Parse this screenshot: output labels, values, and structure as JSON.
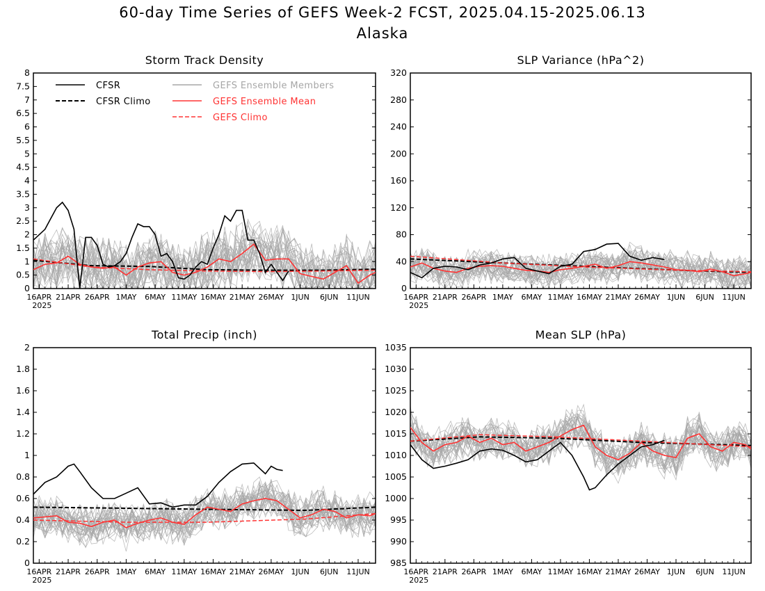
{
  "title_line1": "60-day Time Series of GEFS Week-2 FCST, 2025.04.15-2025.06.13",
  "title_line2": "Alaska",
  "colors": {
    "cfsr": "#000000",
    "members": "#a6a6a6",
    "mean": "#ff3333",
    "gefs_climo": "#ff3333",
    "cfsr_climo": "#000000"
  },
  "legend": {
    "cfsr": "CFSR",
    "cfsr_climo": "CFSR Climo",
    "members": "GEFS Ensemble Members",
    "mean": "GEFS Ensemble Mean",
    "gefs_climo": "GEFS Climo"
  },
  "x_axis": {
    "tick_labels": [
      "16APR",
      "21APR",
      "26APR",
      "1MAY",
      "6MAY",
      "11MAY",
      "16MAY",
      "21MAY",
      "26MAY",
      "1JUN",
      "6JUN",
      "11JUN"
    ],
    "year_label": "2025"
  },
  "chart_data": [
    {
      "type": "line",
      "title": "Storm Track Density",
      "ylim": [
        0,
        8
      ],
      "yticks": [
        "0",
        "0.5",
        "1",
        "1.5",
        "2",
        "2.5",
        "3",
        "3.5",
        "4",
        "4.5",
        "5",
        "5.5",
        "6",
        "6.5",
        "7",
        "7.5",
        "8"
      ],
      "x_start": "2025-04-15",
      "x_end": "2025-06-13",
      "series": [
        {
          "name": "CFSR",
          "dates": [
            "2025-04-15",
            "2025-04-17",
            "2025-04-18",
            "2025-04-19",
            "2025-04-20",
            "2025-04-21",
            "2025-04-22",
            "2025-04-23",
            "2025-04-24",
            "2025-04-25",
            "2025-04-26",
            "2025-04-27",
            "2025-04-28",
            "2025-04-29",
            "2025-04-30",
            "2025-05-01",
            "2025-05-02",
            "2025-05-03",
            "2025-05-04",
            "2025-05-05",
            "2025-05-06",
            "2025-05-07",
            "2025-05-08",
            "2025-05-09",
            "2025-05-10",
            "2025-05-11",
            "2025-05-12",
            "2025-05-13",
            "2025-05-14",
            "2025-05-15",
            "2025-05-16",
            "2025-05-17",
            "2025-05-18",
            "2025-05-19",
            "2025-05-20",
            "2025-05-21",
            "2025-05-22",
            "2025-05-23",
            "2025-05-24",
            "2025-05-25",
            "2025-05-26",
            "2025-05-27",
            "2025-05-28",
            "2025-05-29"
          ],
          "values": [
            1.8,
            2.2,
            2.6,
            3.0,
            3.2,
            2.9,
            2.2,
            0.0,
            1.9,
            1.9,
            1.6,
            0.9,
            0.8,
            0.85,
            1.0,
            1.3,
            1.9,
            2.4,
            2.3,
            2.3,
            2.0,
            1.2,
            1.3,
            1.0,
            0.4,
            0.35,
            0.5,
            0.8,
            1.0,
            0.9,
            1.5,
            2.0,
            2.7,
            2.5,
            2.9,
            2.9,
            1.8,
            1.8,
            1.3,
            0.6,
            0.9,
            0.6,
            0.3,
            0.65
          ]
        },
        {
          "name": "CFSR Climo",
          "dates": [
            "2025-04-15",
            "2025-04-25",
            "2025-05-05",
            "2025-05-15",
            "2025-05-25",
            "2025-06-04",
            "2025-06-13"
          ],
          "values": [
            1.05,
            0.85,
            0.82,
            0.7,
            0.68,
            0.68,
            0.72
          ]
        },
        {
          "name": "GEFS Ensemble Mean",
          "dates": [
            "2025-04-15",
            "2025-04-17",
            "2025-04-19",
            "2025-04-21",
            "2025-04-23",
            "2025-04-25",
            "2025-04-27",
            "2025-04-29",
            "2025-05-01",
            "2025-05-03",
            "2025-05-05",
            "2025-05-07",
            "2025-05-09",
            "2025-05-11",
            "2025-05-13",
            "2025-05-15",
            "2025-05-17",
            "2025-05-19",
            "2025-05-21",
            "2025-05-23",
            "2025-05-25",
            "2025-05-27",
            "2025-05-29",
            "2025-05-31",
            "2025-06-02",
            "2025-06-04",
            "2025-06-06",
            "2025-06-08",
            "2025-06-10",
            "2025-06-12",
            "2025-06-13"
          ],
          "values": [
            0.7,
            0.9,
            0.95,
            1.2,
            0.9,
            0.8,
            0.75,
            0.8,
            0.5,
            0.8,
            0.95,
            1.0,
            0.6,
            0.5,
            0.6,
            0.8,
            1.1,
            1.0,
            1.3,
            1.65,
            1.05,
            1.1,
            1.1,
            0.55,
            0.45,
            0.35,
            0.6,
            0.85,
            0.2,
            0.5,
            0.6
          ]
        },
        {
          "name": "GEFS Climo",
          "dates": [
            "2025-04-15",
            "2025-04-25",
            "2025-05-05",
            "2025-05-15",
            "2025-05-25",
            "2025-06-04",
            "2025-06-13"
          ],
          "values": [
            1.1,
            0.8,
            0.7,
            0.65,
            0.63,
            0.65,
            0.68
          ]
        }
      ]
    },
    {
      "type": "line",
      "title": "SLP Variance (hPa^2)",
      "ylim": [
        0,
        320
      ],
      "yticks": [
        "0",
        "40",
        "80",
        "120",
        "160",
        "200",
        "240",
        "280",
        "320"
      ],
      "x_start": "2025-04-15",
      "x_end": "2025-06-13",
      "series": [
        {
          "name": "CFSR",
          "dates": [
            "2025-04-15",
            "2025-04-17",
            "2025-04-19",
            "2025-04-21",
            "2025-04-23",
            "2025-04-25",
            "2025-04-27",
            "2025-04-29",
            "2025-05-01",
            "2025-05-03",
            "2025-05-05",
            "2025-05-07",
            "2025-05-09",
            "2025-05-11",
            "2025-05-13",
            "2025-05-15",
            "2025-05-17",
            "2025-05-19",
            "2025-05-21",
            "2025-05-23",
            "2025-05-25",
            "2025-05-27",
            "2025-05-29"
          ],
          "values": [
            24,
            16,
            30,
            33,
            32,
            28,
            35,
            38,
            44,
            46,
            30,
            26,
            22,
            33,
            36,
            55,
            58,
            66,
            67,
            48,
            42,
            46,
            43
          ]
        },
        {
          "name": "CFSR Climo",
          "dates": [
            "2025-04-15",
            "2025-05-01",
            "2025-05-15",
            "2025-06-01",
            "2025-06-13"
          ],
          "values": [
            44,
            38,
            33,
            27,
            24
          ]
        },
        {
          "name": "GEFS Ensemble Mean",
          "dates": [
            "2025-04-15",
            "2025-04-17",
            "2025-04-19",
            "2025-04-21",
            "2025-04-23",
            "2025-04-25",
            "2025-04-27",
            "2025-04-29",
            "2025-05-01",
            "2025-05-03",
            "2025-05-05",
            "2025-05-07",
            "2025-05-09",
            "2025-05-11",
            "2025-05-13",
            "2025-05-15",
            "2025-05-17",
            "2025-05-19",
            "2025-05-21",
            "2025-05-23",
            "2025-05-25",
            "2025-05-27",
            "2025-05-29",
            "2025-05-31",
            "2025-06-02",
            "2025-06-04",
            "2025-06-06",
            "2025-06-08",
            "2025-06-10",
            "2025-06-12",
            "2025-06-13"
          ],
          "values": [
            32,
            38,
            30,
            26,
            24,
            30,
            33,
            34,
            33,
            30,
            27,
            26,
            24,
            28,
            30,
            33,
            36,
            30,
            34,
            40,
            38,
            35,
            32,
            28,
            27,
            25,
            29,
            25,
            19,
            22,
            24
          ]
        },
        {
          "name": "GEFS Climo",
          "dates": [
            "2025-04-15",
            "2025-05-01",
            "2025-05-15",
            "2025-06-01",
            "2025-06-13"
          ],
          "values": [
            48,
            38,
            32,
            27,
            25
          ]
        }
      ]
    },
    {
      "type": "line",
      "title": "Total Precip (inch)",
      "ylim": [
        0,
        2
      ],
      "yticks": [
        "0",
        "0.2",
        "0.4",
        "0.6",
        "0.8",
        "1",
        "1.2",
        "1.4",
        "1.6",
        "1.8",
        "2"
      ],
      "x_start": "2025-04-15",
      "x_end": "2025-06-13",
      "series": [
        {
          "name": "CFSR",
          "dates": [
            "2025-04-15",
            "2025-04-17",
            "2025-04-19",
            "2025-04-20",
            "2025-04-21",
            "2025-04-22",
            "2025-04-23",
            "2025-04-25",
            "2025-04-27",
            "2025-04-29",
            "2025-05-01",
            "2025-05-03",
            "2025-05-05",
            "2025-05-07",
            "2025-05-09",
            "2025-05-11",
            "2025-05-13",
            "2025-05-15",
            "2025-05-17",
            "2025-05-19",
            "2025-05-21",
            "2025-05-23",
            "2025-05-25",
            "2025-05-26",
            "2025-05-27",
            "2025-05-28"
          ],
          "values": [
            0.64,
            0.75,
            0.8,
            0.85,
            0.9,
            0.92,
            0.85,
            0.7,
            0.6,
            0.6,
            0.65,
            0.7,
            0.55,
            0.56,
            0.52,
            0.54,
            0.54,
            0.62,
            0.75,
            0.85,
            0.92,
            0.93,
            0.83,
            0.9,
            0.87,
            0.86
          ]
        },
        {
          "name": "CFSR Climo",
          "dates": [
            "2025-04-15",
            "2025-05-01",
            "2025-05-15",
            "2025-06-01",
            "2025-06-13"
          ],
          "values": [
            0.52,
            0.51,
            0.5,
            0.49,
            0.52
          ]
        },
        {
          "name": "GEFS Ensemble Mean",
          "dates": [
            "2025-04-15",
            "2025-04-17",
            "2025-04-19",
            "2025-04-21",
            "2025-04-23",
            "2025-04-25",
            "2025-04-27",
            "2025-04-29",
            "2025-05-01",
            "2025-05-03",
            "2025-05-05",
            "2025-05-07",
            "2025-05-09",
            "2025-05-11",
            "2025-05-13",
            "2025-05-15",
            "2025-05-17",
            "2025-05-19",
            "2025-05-21",
            "2025-05-23",
            "2025-05-25",
            "2025-05-27",
            "2025-05-29",
            "2025-05-31",
            "2025-06-02",
            "2025-06-04",
            "2025-06-06",
            "2025-06-08",
            "2025-06-10",
            "2025-06-12",
            "2025-06-13"
          ],
          "values": [
            0.42,
            0.43,
            0.44,
            0.38,
            0.37,
            0.34,
            0.38,
            0.4,
            0.33,
            0.37,
            0.4,
            0.42,
            0.38,
            0.36,
            0.45,
            0.52,
            0.5,
            0.48,
            0.55,
            0.58,
            0.6,
            0.58,
            0.5,
            0.42,
            0.45,
            0.5,
            0.48,
            0.42,
            0.45,
            0.44,
            0.46
          ]
        },
        {
          "name": "GEFS Climo",
          "dates": [
            "2025-04-15",
            "2025-05-01",
            "2025-05-15",
            "2025-06-01",
            "2025-06-13"
          ],
          "values": [
            0.4,
            0.38,
            0.38,
            0.41,
            0.46
          ]
        }
      ]
    },
    {
      "type": "line",
      "title": "Mean SLP (hPa)",
      "ylim": [
        985,
        1035
      ],
      "yticks": [
        "985",
        "990",
        "995",
        "1000",
        "1005",
        "1010",
        "1015",
        "1020",
        "1025",
        "1030",
        "1035"
      ],
      "x_start": "2025-04-15",
      "x_end": "2025-06-13",
      "series": [
        {
          "name": "CFSR",
          "dates": [
            "2025-04-15",
            "2025-04-17",
            "2025-04-19",
            "2025-04-21",
            "2025-04-23",
            "2025-04-25",
            "2025-04-27",
            "2025-04-29",
            "2025-05-01",
            "2025-05-03",
            "2025-05-05",
            "2025-05-07",
            "2025-05-09",
            "2025-05-11",
            "2025-05-13",
            "2025-05-15",
            "2025-05-16",
            "2025-05-17",
            "2025-05-19",
            "2025-05-21",
            "2025-05-23",
            "2025-05-25",
            "2025-05-27",
            "2025-05-29"
          ],
          "values": [
            1012.5,
            1009,
            1007,
            1007.5,
            1008.2,
            1009,
            1011,
            1011.5,
            1011.2,
            1010,
            1008.5,
            1009,
            1011,
            1013,
            1010,
            1005,
            1002,
            1002.5,
            1005.5,
            1008,
            1010,
            1012,
            1012.5,
            1013.5
          ]
        },
        {
          "name": "CFSR Climo",
          "dates": [
            "2025-04-15",
            "2025-04-27",
            "2025-05-10",
            "2025-05-25",
            "2025-06-13"
          ],
          "values": [
            1013.3,
            1014.3,
            1014.0,
            1013.0,
            1012.3
          ]
        },
        {
          "name": "GEFS Ensemble Mean",
          "dates": [
            "2025-04-15",
            "2025-04-17",
            "2025-04-19",
            "2025-04-21",
            "2025-04-23",
            "2025-04-25",
            "2025-04-27",
            "2025-04-29",
            "2025-05-01",
            "2025-05-03",
            "2025-05-05",
            "2025-05-07",
            "2025-05-09",
            "2025-05-11",
            "2025-05-13",
            "2025-05-15",
            "2025-05-17",
            "2025-05-19",
            "2025-05-21",
            "2025-05-23",
            "2025-05-25",
            "2025-05-27",
            "2025-05-29",
            "2025-05-31",
            "2025-06-02",
            "2025-06-04",
            "2025-06-06",
            "2025-06-08",
            "2025-06-10",
            "2025-06-12",
            "2025-06-13"
          ],
          "values": [
            1016.5,
            1013,
            1011,
            1012.5,
            1013,
            1014.5,
            1013,
            1014,
            1012.5,
            1013,
            1011,
            1012,
            1013,
            1014.5,
            1016,
            1017,
            1012,
            1010,
            1009,
            1010.5,
            1013,
            1011,
            1010,
            1009.5,
            1014,
            1015,
            1012,
            1011,
            1013,
            1012.5,
            1011.5
          ]
        },
        {
          "name": "GEFS Climo",
          "dates": [
            "2025-04-15",
            "2025-04-27",
            "2025-05-10",
            "2025-05-25",
            "2025-06-13"
          ],
          "values": [
            1013.3,
            1014.8,
            1014.3,
            1013.3,
            1012.0
          ]
        }
      ]
    }
  ]
}
